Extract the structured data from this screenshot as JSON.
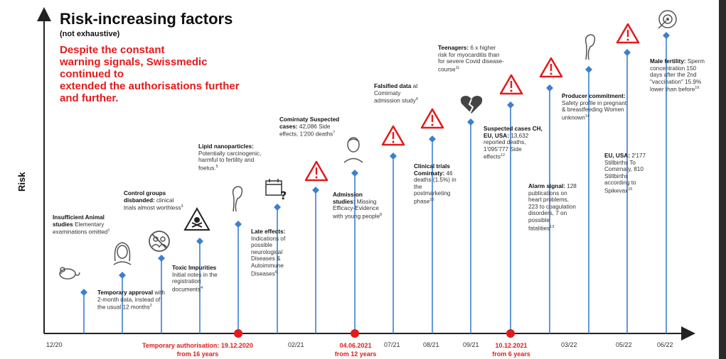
{
  "title": "Risk-increasing factors",
  "subtitle": "(not exhaustive)",
  "warning": [
    "Despite the constant",
    "warning signals, Swissmedic",
    "continued to",
    "extended the authorisations further",
    "and further."
  ],
  "y_axis_label": "Risk",
  "dates": [
    "12/20",
    "02/21",
    "07/21",
    "08/21",
    "09/21",
    "03/22",
    "05/22",
    "06/22"
  ],
  "red_dates": {
    "temp_auth": [
      "Temporary authorisation: 19.12.2020",
      "from 16 years"
    ],
    "jun21": [
      "04.06.2021",
      "from 12 years"
    ],
    "dec21": [
      "10.12.2021",
      "from 6 years"
    ]
  },
  "annotations": {
    "a1": {
      "head": "Insufficient Animal studies",
      "body": "Elementary examinations omitted",
      "ref": "1"
    },
    "a2": {
      "head": "Temporary approval",
      "body": "with 2-month data, instead of the usual 12 months",
      "ref": "2"
    },
    "a3": {
      "head": "Control groups disbanded:",
      "body": "clinical trials almost worthless",
      "ref": "3"
    },
    "a4": {
      "head": "Toxic Impurities",
      "body": "Initial notes in the registration documents",
      "ref": "4"
    },
    "a5": {
      "head": "Lipid nanoparticles:",
      "body": "Potentially carcinogenic, harmful to fertility and foetus.",
      "ref": "5"
    },
    "a6": {
      "head": "Late effects:",
      "body": "Indications of possible neurological Diseases & Autoimmune Diseases",
      "ref": "6"
    },
    "a7": {
      "head": "Comirnaty Suspected cases:",
      "body": "42,086 Side effects, 1'200 deaths",
      "ref": "7"
    },
    "a8": {
      "head": "Admission studies:",
      "body": "Missing Efficacy-Evidence with young people",
      "ref": "8"
    },
    "a9": {
      "head": "Falsified data",
      "body": "at Comirnaty admission study",
      "ref": "9"
    },
    "a10": {
      "head": "Clinical trials Comirnaty:",
      "body": "46 deaths (1.5%) in the postmarketing phase",
      "ref": "10"
    },
    "a11": {
      "head": "Teenagers:",
      "body": "6 x higher risk for myocarditis than for severe Covid disease-course",
      "ref": "11"
    },
    "a12": {
      "head": "Suspected cases CH, EU, USA:",
      "body": "13,632 reported deaths, 1'095'777 Side effects",
      "ref": "12"
    },
    "a13": {
      "head": "Alarm signal:",
      "body": "128 publications on heart problems, 223 to coagulation disorders, 7 on possible fatalities",
      "ref": "13"
    },
    "a14": {
      "head": "Producer commitment:",
      "body": "Safety profile in pregnant & breastfeeding Women unknown",
      "ref": "14"
    },
    "a15": {
      "head": "EU, USA:",
      "body": "2'177 Stillbirths To Comirnaty, 810 Stillbirths according to Spikevax",
      "ref": "15"
    },
    "a16": {
      "head": "Male fertility:",
      "body": "Sperm concentration 150 days after the 2nd \"vaccination\" 15.9% lower than before",
      "ref": "16"
    }
  },
  "colors": {
    "marker": "#3c7fd0",
    "axis": "#222222",
    "accent": "#e21b1b"
  }
}
